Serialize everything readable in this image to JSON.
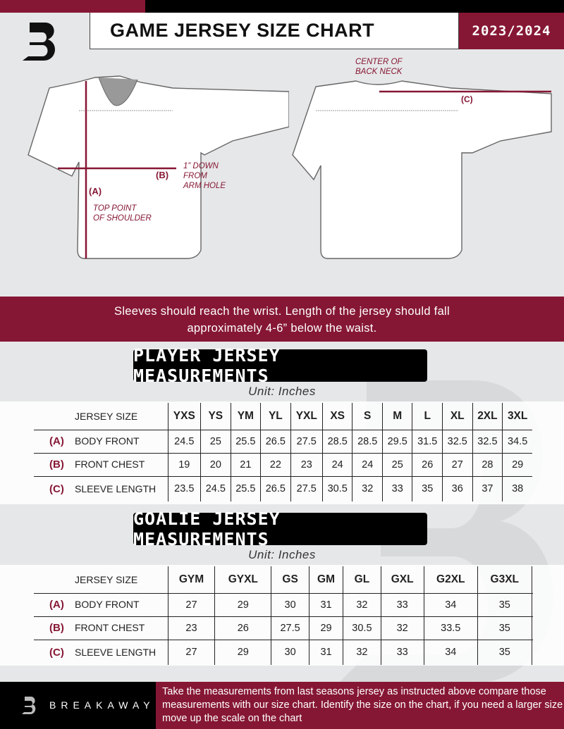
{
  "header": {
    "title": "GAME JERSEY SIZE CHART",
    "season": "2023/2024",
    "logo_letter": "B"
  },
  "diagram": {
    "front": {
      "label_a": "(A)",
      "label_a_desc_1": "TOP POINT",
      "label_a_desc_2": "OF SHOULDER",
      "label_b": "(B)",
      "label_b_desc_1": "1” DOWN",
      "label_b_desc_2": "FROM",
      "label_b_desc_3": "ARM HOLE"
    },
    "back": {
      "center_1": "CENTER OF",
      "center_2": "BACK NECK",
      "label_c": "(C)"
    }
  },
  "banner": {
    "line1": "Sleeves should reach the wrist. Length of the jersey should fall",
    "line2": "approximately 4-6” below the waist."
  },
  "player": {
    "title": "PLAYER JERSEY MEASUREMENTS",
    "unit": "Unit: Inches",
    "header": "JERSEY SIZE",
    "sizes": [
      "YXS",
      "YS",
      "YM",
      "YL",
      "YXL",
      "XS",
      "S",
      "M",
      "L",
      "XL",
      "2XL",
      "3XL"
    ],
    "rows": [
      {
        "letter": "(A)",
        "label": "BODY FRONT",
        "values": [
          "24.5",
          "25",
          "25.5",
          "26.5",
          "27.5",
          "28.5",
          "28.5",
          "29.5",
          "31.5",
          "32.5",
          "32.5",
          "34.5"
        ]
      },
      {
        "letter": "(B)",
        "label": "FRONT CHEST",
        "values": [
          "19",
          "20",
          "21",
          "22",
          "23",
          "24",
          "24",
          "25",
          "26",
          "27",
          "28",
          "29"
        ]
      },
      {
        "letter": "(C)",
        "label": "SLEEVE LENGTH",
        "values": [
          "23.5",
          "24.5",
          "25.5",
          "26.5",
          "27.5",
          "30.5",
          "32",
          "33",
          "35",
          "36",
          "37",
          "38"
        ]
      }
    ]
  },
  "goalie": {
    "title": "GOALIE JERSEY MEASUREMENTS",
    "unit": "Unit: Inches",
    "header": "JERSEY SIZE",
    "sizes": [
      "GYM",
      "GYXL",
      "GS",
      "GM",
      "GL",
      "GXL",
      "G2XL",
      "G3XL",
      ""
    ],
    "rows": [
      {
        "letter": "(A)",
        "label": "BODY FRONT",
        "values": [
          "27",
          "29",
          "30",
          "31",
          "32",
          "33",
          "34",
          "35",
          ""
        ]
      },
      {
        "letter": "(B)",
        "label": "FRONT CHEST",
        "values": [
          "23",
          "26",
          "27.5",
          "29",
          "30.5",
          "32",
          "33.5",
          "35",
          ""
        ]
      },
      {
        "letter": "(C)",
        "label": "SLEEVE LENGTH",
        "values": [
          "27",
          "29",
          "30",
          "31",
          "32",
          "33",
          "34",
          "35",
          ""
        ]
      }
    ]
  },
  "footer": {
    "brand": "BREAKAWAY",
    "text": "Take the measurements from last seasons jersey as instructed above compare those measurements  with our size chart. Identify the size on the chart, if you need a larger size move up the scale on the chart"
  },
  "colors": {
    "accent": "#861734",
    "dark": "#000000",
    "background": "#e6e7e8"
  }
}
